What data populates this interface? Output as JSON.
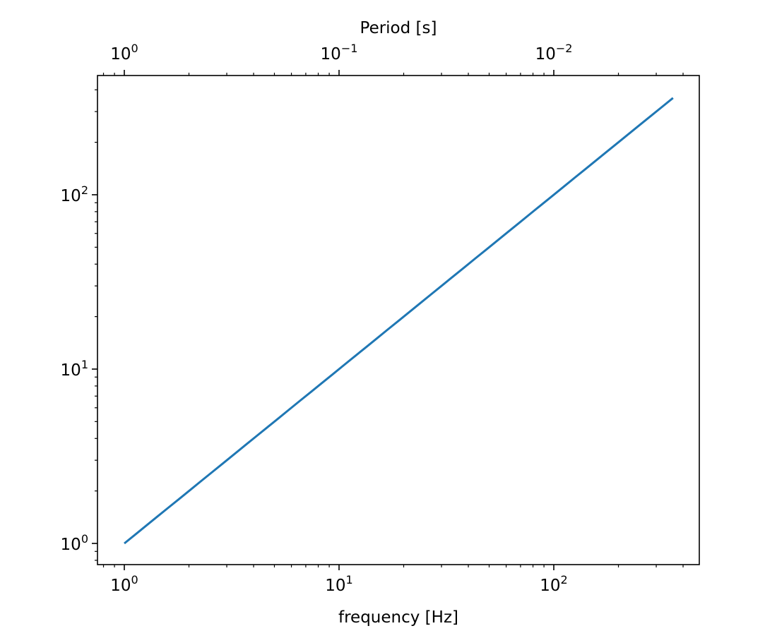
{
  "chart_data": {
    "type": "line",
    "xlabel": "frequency [Hz]",
    "ylabel": "",
    "secondary_xlabel": "Period [s]",
    "xscale": "log",
    "yscale": "log",
    "xlim": [
      0.75,
      476
    ],
    "ylim": [
      0.756,
      483
    ],
    "x_ticks": [
      {
        "value": 1,
        "base": "10",
        "exp": "0"
      },
      {
        "value": 10,
        "base": "10",
        "exp": "1"
      },
      {
        "value": 100,
        "base": "10",
        "exp": "2"
      }
    ],
    "y_ticks": [
      {
        "value": 1,
        "base": "10",
        "exp": "0"
      },
      {
        "value": 10,
        "base": "10",
        "exp": "1"
      },
      {
        "value": 100,
        "base": "10",
        "exp": "2"
      }
    ],
    "secondary_x_ticks": [
      {
        "value": 1,
        "base": "10",
        "exp": "0"
      },
      {
        "value": 0.1,
        "base": "10",
        "exp": "−1"
      },
      {
        "value": 0.01,
        "base": "10",
        "exp": "−2"
      }
    ],
    "secondary_transform": "period = 1 / frequency",
    "grid": false,
    "series": [
      {
        "x_start": 1,
        "x_end": 359,
        "relation": "y = x",
        "color": "#1f77b4"
      }
    ]
  }
}
